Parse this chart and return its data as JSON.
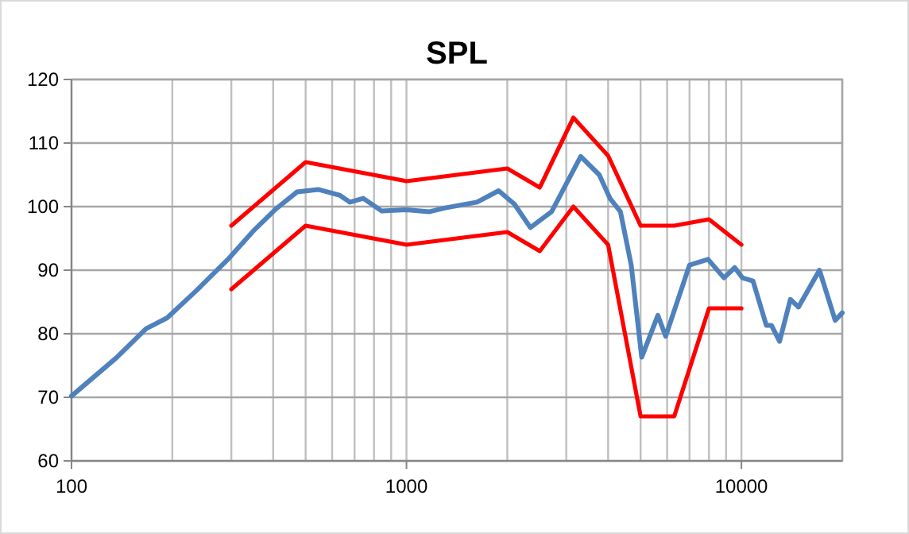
{
  "chart_data": {
    "type": "line",
    "title": "SPL",
    "log": "x",
    "grid": true,
    "line_style": "solid",
    "xlim": [
      100,
      20000
    ],
    "ylim": [
      60,
      120
    ],
    "xticks": [
      100,
      {
        "value": 200,
        "label": null
      },
      {
        "value": 300,
        "label": null
      },
      {
        "value": 400,
        "label": null
      },
      {
        "value": 500,
        "label": null
      },
      {
        "value": 600,
        "label": null
      },
      {
        "value": 700,
        "label": null
      },
      {
        "value": 800,
        "label": null
      },
      {
        "value": 900,
        "label": null
      },
      1000,
      {
        "value": 2000,
        "label": null
      },
      {
        "value": 3000,
        "label": null
      },
      {
        "value": 4000,
        "label": null
      },
      {
        "value": 5000,
        "label": null
      },
      {
        "value": 6000,
        "label": null
      },
      {
        "value": 7000,
        "label": null
      },
      {
        "value": 8000,
        "label": null
      },
      {
        "value": 9000,
        "label": null
      },
      10000,
      {
        "value": 20000,
        "label": null
      }
    ],
    "yticks": [
      60,
      70,
      80,
      90,
      100,
      110,
      120
    ],
    "series": [
      {
        "color": "#4f81bd",
        "x": [
          100,
          136,
          167,
          193,
          235,
          293,
          351,
          407,
          471,
          545,
          631,
          678,
          743,
          844,
          1000,
          1172,
          1306,
          1624,
          1884,
          2099,
          2344,
          2712,
          3313,
          3764,
          4050,
          4353,
          4688,
          5038,
          5630,
          5940,
          6998,
          7950,
          8870,
          9550,
          10070,
          10830,
          11870,
          12300,
          13000,
          14000,
          14800,
          17100,
          19050,
          20000
        ],
        "values": [
          70.2,
          76.2,
          80.8,
          82.5,
          86.7,
          91.7,
          96.3,
          99.6,
          102.3,
          102.7,
          101.8,
          100.7,
          101.3,
          99.3,
          99.5,
          99.2,
          99.8,
          100.7,
          102.5,
          100.4,
          96.7,
          99.2,
          107.9,
          105,
          101.3,
          99.2,
          90.8,
          76.3,
          82.9,
          79.6,
          90.8,
          91.7,
          88.8,
          90.4,
          88.8,
          88.3,
          81.3,
          81.3,
          78.8,
          85.4,
          84.2,
          90,
          82.1,
          83.3
        ]
      },
      {
        "color": "#ff0000",
        "x": [
          300,
          500,
          1000,
          2000,
          2500,
          3150,
          4000,
          5000,
          6300,
          8000,
          10000
        ],
        "values": [
          97,
          107,
          104,
          106,
          103,
          114,
          108,
          97,
          97,
          98,
          94
        ]
      },
      {
        "color": "#ff0000",
        "x": [
          300,
          500,
          1000,
          2000,
          2500,
          3150,
          4000,
          5000,
          6300,
          8000,
          10000
        ],
        "values": [
          87,
          97,
          94,
          96,
          93,
          100,
          94,
          67,
          67,
          84,
          84
        ]
      }
    ]
  }
}
